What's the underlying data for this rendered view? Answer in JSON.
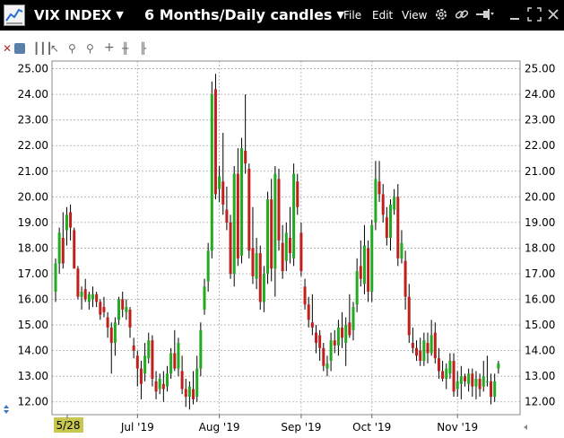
{
  "window": {
    "symbol": "VIX INDEX",
    "timeframe": "6 Months/Daily candles",
    "menu": [
      "File",
      "Edit",
      "View"
    ]
  },
  "colors": {
    "up": "#22aa22",
    "down": "#c0201c",
    "wick": "#000000",
    "grid": "#aaaaaa",
    "start_label_bg": "#c8c850"
  },
  "icons": {
    "app": "chart-app-icon",
    "gear": "gear-icon",
    "link": "link-icon",
    "pin": "pin-icon",
    "minimize": "minimize-icon",
    "maximize": "maximize-icon",
    "close": "close-icon"
  },
  "toolbar_icons": [
    "close-x-icon",
    "info-icon",
    "bars-icon",
    "draw-icon",
    "zoom-in-icon",
    "zoom-out-icon",
    "crosshair-icon",
    "cursor-icon",
    "bar-type-icon"
  ],
  "chart_data": {
    "type": "candlestick",
    "title": "",
    "y_ticks": [
      "25.00",
      "24.00",
      "23.00",
      "22.00",
      "21.00",
      "20.00",
      "19.00",
      "18.00",
      "17.00",
      "16.00",
      "15.00",
      "14.00",
      "13.00",
      "12.00"
    ],
    "ylim": [
      11.5,
      25.3
    ],
    "start_label": "5/28",
    "x_labels": [
      {
        "label": "Jul '19",
        "day": 22
      },
      {
        "label": "Aug '19",
        "day": 44
      },
      {
        "label": "Sep '19",
        "day": 66
      },
      {
        "label": "Oct '19",
        "day": 85
      },
      {
        "label": "Nov '19",
        "day": 108
      }
    ],
    "days_visible": 125,
    "candles": [
      [
        16.3,
        17.6,
        15.9,
        17.4
      ],
      [
        17.4,
        18.8,
        17.0,
        18.6
      ],
      [
        18.4,
        19.4,
        17.2,
        17.4
      ],
      [
        18.7,
        19.6,
        18.1,
        19.3
      ],
      [
        19.4,
        19.7,
        18.3,
        18.8
      ],
      [
        18.7,
        18.8,
        17.2,
        17.2
      ],
      [
        17.2,
        17.3,
        16.0,
        16.1
      ],
      [
        16.1,
        16.5,
        15.6,
        16.3
      ],
      [
        16.4,
        16.8,
        15.9,
        16.0
      ],
      [
        15.9,
        16.3,
        15.6,
        16.2
      ],
      [
        16.0,
        16.5,
        15.7,
        16.2
      ],
      [
        16.2,
        16.3,
        15.7,
        15.9
      ],
      [
        15.9,
        16.0,
        15.2,
        15.4
      ],
      [
        15.7,
        16.1,
        15.3,
        15.5
      ],
      [
        15.3,
        15.5,
        14.5,
        14.9
      ],
      [
        14.9,
        15.1,
        13.1,
        14.3
      ],
      [
        14.3,
        15.3,
        13.8,
        15.1
      ],
      [
        15.2,
        16.1,
        15.0,
        16.0
      ],
      [
        16.0,
        16.3,
        15.3,
        15.6
      ],
      [
        15.5,
        16.0,
        15.2,
        15.7
      ],
      [
        15.6,
        15.7,
        14.5,
        14.9
      ],
      [
        14.2,
        14.5,
        13.7,
        14.0
      ],
      [
        13.8,
        14.0,
        12.6,
        13.3
      ],
      [
        13.3,
        13.6,
        12.1,
        12.7
      ],
      [
        13.1,
        14.3,
        12.8,
        13.8
      ],
      [
        13.7,
        14.7,
        13.5,
        14.4
      ],
      [
        14.4,
        14.6,
        12.6,
        12.9
      ],
      [
        12.8,
        13.2,
        12.1,
        12.4
      ],
      [
        12.5,
        13.1,
        12.3,
        12.9
      ],
      [
        12.7,
        13.2,
        12.0,
        12.5
      ],
      [
        12.6,
        13.4,
        12.4,
        13.1
      ],
      [
        13.1,
        14.1,
        12.9,
        13.9
      ],
      [
        13.9,
        14.8,
        13.2,
        13.3
      ],
      [
        13.3,
        14.5,
        13.0,
        14.3
      ],
      [
        13.2,
        13.8,
        12.3,
        12.5
      ],
      [
        12.5,
        12.9,
        11.8,
        12.2
      ],
      [
        12.2,
        12.8,
        11.7,
        12.6
      ],
      [
        12.5,
        13.2,
        11.9,
        12.1
      ],
      [
        12.2,
        13.8,
        12.0,
        13.3
      ],
      [
        13.3,
        15.1,
        13.0,
        14.8
      ],
      [
        15.6,
        16.8,
        15.4,
        16.5
      ],
      [
        16.7,
        18.2,
        16.3,
        17.9
      ],
      [
        17.9,
        24.5,
        17.6,
        24.0
      ],
      [
        24.2,
        24.8,
        19.9,
        20.1
      ],
      [
        20.3,
        21.2,
        19.8,
        20.8
      ],
      [
        20.6,
        22.5,
        19.3,
        19.7
      ],
      [
        19.5,
        20.4,
        18.7,
        19.0
      ],
      [
        19.0,
        19.3,
        16.8,
        17.0
      ],
      [
        17.0,
        21.2,
        16.5,
        20.9
      ],
      [
        20.9,
        21.9,
        17.3,
        17.6
      ],
      [
        17.7,
        22.3,
        17.4,
        21.9
      ],
      [
        21.8,
        24.0,
        20.9,
        21.3
      ],
      [
        21.1,
        21.3,
        17.6,
        17.9
      ],
      [
        18.0,
        19.6,
        16.6,
        16.9
      ],
      [
        16.8,
        18.4,
        16.4,
        17.8
      ],
      [
        17.8,
        18.1,
        15.6,
        15.9
      ],
      [
        15.9,
        17.3,
        15.5,
        17.0
      ],
      [
        17.0,
        20.2,
        16.6,
        19.9
      ],
      [
        19.9,
        20.7,
        16.7,
        17.2
      ],
      [
        17.2,
        21.2,
        16.1,
        20.9
      ],
      [
        20.7,
        21.1,
        17.9,
        18.3
      ],
      [
        18.2,
        18.9,
        16.8,
        17.1
      ],
      [
        17.5,
        19.0,
        17.1,
        18.6
      ],
      [
        18.4,
        19.6,
        17.4,
        17.8
      ],
      [
        17.6,
        21.3,
        17.3,
        20.9
      ],
      [
        20.6,
        20.9,
        19.3,
        19.6
      ],
      [
        18.6,
        19.0,
        16.9,
        17.1
      ],
      [
        16.5,
        16.8,
        15.6,
        15.8
      ],
      [
        15.8,
        16.1,
        14.9,
        15.2
      ],
      [
        15.1,
        16.2,
        14.6,
        14.9
      ],
      [
        14.7,
        15.0,
        13.9,
        14.3
      ],
      [
        14.6,
        14.8,
        13.6,
        14.1
      ],
      [
        14.1,
        14.3,
        13.2,
        13.4
      ],
      [
        13.3,
        13.8,
        13.0,
        13.5
      ],
      [
        13.6,
        14.7,
        13.2,
        14.4
      ],
      [
        14.4,
        14.8,
        13.9,
        14.2
      ],
      [
        14.2,
        15.2,
        13.8,
        14.9
      ],
      [
        14.9,
        15.5,
        14.1,
        14.5
      ],
      [
        14.3,
        15.3,
        13.4,
        15.0
      ],
      [
        15.1,
        16.2,
        14.5,
        14.6
      ],
      [
        14.8,
        15.9,
        14.4,
        15.7
      ],
      [
        15.8,
        17.6,
        15.5,
        17.1
      ],
      [
        17.3,
        18.3,
        16.5,
        16.8
      ],
      [
        16.6,
        18.9,
        16.2,
        18.1
      ],
      [
        18.0,
        18.3,
        15.9,
        16.3
      ],
      [
        16.3,
        19.1,
        15.9,
        18.9
      ],
      [
        19.0,
        21.4,
        18.7,
        20.7
      ],
      [
        20.6,
        21.4,
        19.8,
        20.1
      ],
      [
        20.1,
        20.5,
        19.0,
        19.3
      ],
      [
        19.2,
        19.6,
        18.1,
        18.4
      ],
      [
        18.4,
        19.9,
        17.9,
        19.7
      ],
      [
        19.5,
        20.3,
        19.3,
        20.0
      ],
      [
        20.0,
        20.5,
        17.3,
        17.6
      ],
      [
        17.6,
        18.7,
        17.4,
        18.2
      ],
      [
        17.5,
        17.9,
        15.6,
        16.1
      ],
      [
        16.1,
        16.6,
        14.3,
        14.6
      ],
      [
        14.3,
        14.9,
        13.9,
        14.1
      ],
      [
        14.1,
        14.4,
        13.6,
        13.8
      ],
      [
        14.0,
        14.5,
        13.4,
        13.6
      ],
      [
        13.6,
        14.7,
        13.4,
        14.4
      ],
      [
        14.3,
        14.7,
        13.5,
        13.9
      ],
      [
        13.9,
        15.2,
        13.8,
        14.6
      ],
      [
        14.7,
        15.1,
        13.5,
        13.7
      ],
      [
        13.7,
        14.1,
        12.9,
        13.2
      ],
      [
        13.2,
        13.6,
        12.8,
        12.9
      ],
      [
        12.9,
        13.5,
        12.5,
        13.3
      ],
      [
        13.1,
        13.9,
        12.9,
        13.6
      ],
      [
        13.6,
        13.9,
        12.2,
        12.4
      ],
      [
        12.5,
        13.2,
        12.2,
        12.8
      ],
      [
        12.7,
        13.4,
        12.1,
        13.0
      ],
      [
        13.0,
        13.1,
        12.6,
        12.8
      ],
      [
        12.7,
        13.3,
        12.4,
        13.1
      ],
      [
        13.1,
        13.3,
        12.2,
        12.6
      ],
      [
        12.6,
        13.2,
        12.1,
        12.9
      ],
      [
        12.9,
        13.1,
        12.2,
        12.5
      ],
      [
        12.6,
        13.6,
        12.4,
        13.0
      ],
      [
        12.8,
        13.8,
        12.6,
        12.8
      ],
      [
        12.8,
        13.1,
        11.9,
        12.2
      ],
      [
        12.2,
        13.1,
        12.0,
        12.8
      ],
      [
        13.3,
        13.6,
        13.1,
        13.5
      ]
    ]
  }
}
